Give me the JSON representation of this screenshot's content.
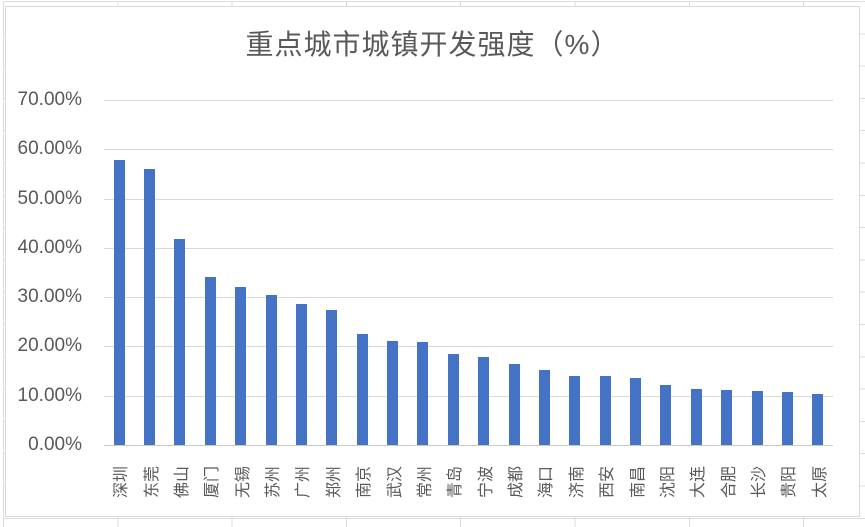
{
  "chart_data": {
    "type": "bar",
    "title": "重点城市城镇开发强度（%）",
    "categories": [
      "深圳",
      "东莞",
      "佛山",
      "厦门",
      "无锡",
      "苏州",
      "广州",
      "郑州",
      "南京",
      "武汉",
      "常州",
      "青岛",
      "宁波",
      "成都",
      "海口",
      "济南",
      "西安",
      "南昌",
      "沈阳",
      "大连",
      "合肥",
      "长沙",
      "贵阳",
      "太原"
    ],
    "values": [
      57.8,
      56.1,
      41.8,
      34.0,
      32.0,
      30.4,
      28.7,
      27.3,
      22.6,
      21.0,
      20.9,
      18.4,
      17.8,
      16.4,
      15.2,
      14.1,
      14.0,
      13.5,
      12.1,
      11.3,
      11.2,
      10.9,
      10.8,
      10.3
    ],
    "value_suffix": "%",
    "y_axis": {
      "min": 0,
      "max": 70,
      "step": 10,
      "tick_labels": [
        "0.00%",
        "10.00%",
        "20.00%",
        "30.00%",
        "40.00%",
        "50.00%",
        "60.00%",
        "70.00%"
      ]
    },
    "x_label_rotation_deg": -90,
    "grid": true,
    "legend": false,
    "colors": {
      "bar": "#4472C4",
      "gridline": "#D9D9D9",
      "axis_line": "#C9C9C9",
      "labels": "#595959",
      "title": "#595959",
      "chart_border": "#D9D9D9",
      "sheet_gridline": "#DCDCDC"
    }
  }
}
